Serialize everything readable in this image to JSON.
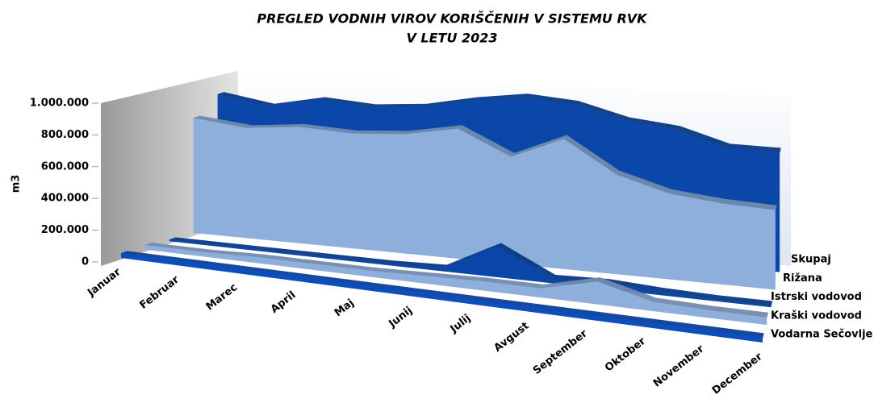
{
  "chart_data": {
    "type": "area3d",
    "title": [
      "PREGLED VODNIH VIROV KORIŠČENIH V SISTEMU RVK",
      "V LETU 2023"
    ],
    "y_label": "m3",
    "categories": [
      "Januar",
      "Februar",
      "Marec",
      "April",
      "Maj",
      "Junij",
      "Julij",
      "Avgust",
      "September",
      "Oktober",
      "November",
      "December"
    ],
    "series": [
      {
        "name": "Skupaj",
        "color": "#0a47a8",
        "values": [
          850000,
          800000,
          870000,
          850000,
          880000,
          950000,
          1000000,
          980000,
          900000,
          870000,
          780000,
          780000
        ]
      },
      {
        "name": "Rižana",
        "color": "#8eaedb",
        "values": [
          750000,
          720000,
          760000,
          750000,
          780000,
          850000,
          700000,
          850000,
          650000,
          560000,
          530000,
          520000
        ]
      },
      {
        "name": "Istrski vodovod",
        "color": "#0a47a8",
        "values": [
          10000,
          10000,
          10000,
          10000,
          10000,
          20000,
          200000,
          30000,
          40000,
          20000,
          10000,
          10000
        ]
      },
      {
        "name": "Kraški vodovod",
        "color": "#8eaedb",
        "values": [
          30000,
          30000,
          40000,
          40000,
          40000,
          50000,
          60000,
          60000,
          150000,
          60000,
          50000,
          50000
        ]
      },
      {
        "name": "Vodarna Sečovlje",
        "color": "#0b4fbf",
        "values": [
          30000,
          30000,
          30000,
          30000,
          30000,
          30000,
          30000,
          30000,
          30000,
          30000,
          30000,
          30000
        ]
      }
    ],
    "ylim": [
      0,
      1000000
    ],
    "yticks": [
      0,
      {
        "value": 200000,
        "label": "200.000"
      },
      {
        "value": 400000,
        "label": "400.000"
      },
      {
        "value": 600000,
        "label": "600.000"
      },
      {
        "value": 800000,
        "label": "800.000"
      },
      {
        "value": 1000000,
        "label": "1.000.000"
      }
    ]
  }
}
